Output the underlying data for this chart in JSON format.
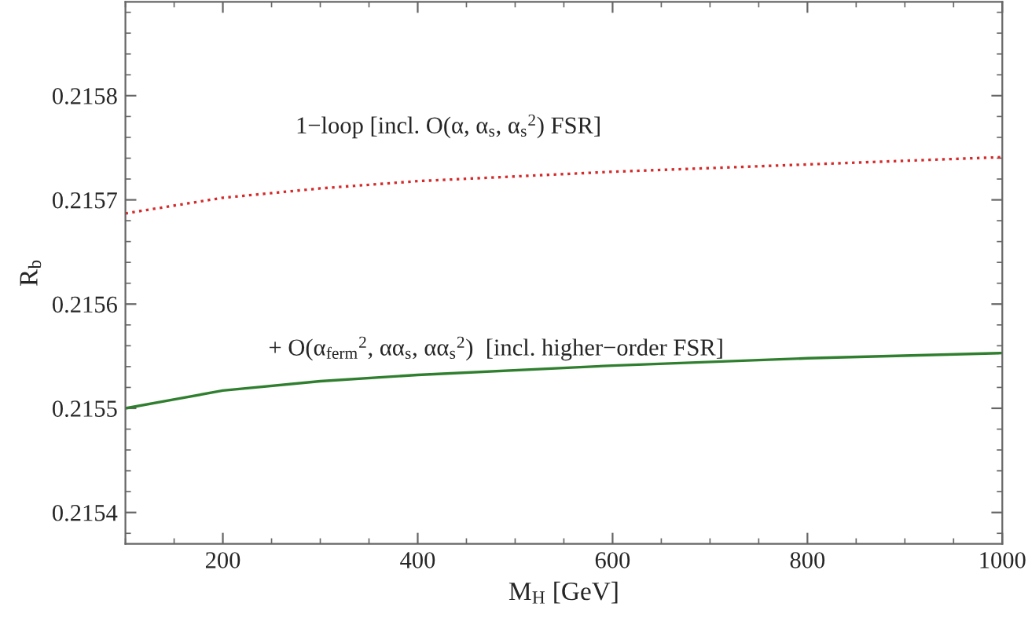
{
  "chart_data": {
    "type": "line",
    "xlabel": "M$_{H}$ [GeV]",
    "ylabel": "R$_{b}$",
    "x": [
      100,
      200,
      300,
      400,
      600,
      800,
      1000
    ],
    "series": [
      {
        "color": "#d42a2a",
        "line_style": "dotted",
        "values": [
          0.215687,
          0.215702,
          0.215711,
          0.215718,
          0.215727,
          0.215734,
          0.215741
        ]
      },
      {
        "color": "#2f7f2f",
        "line_style": "solid",
        "values": [
          0.2155,
          0.215517,
          0.215526,
          0.215532,
          0.215541,
          0.215548,
          0.215553
        ]
      }
    ],
    "annotations": [
      "1−loop [incl. O(α, α$_{s}$, α$_{s}$$^{2}$) FSR]",
      "+ O(α$_{ferm}$$^{2}$, αα$_{s}$, αα$_{s}$$^{2}$)  [incl. higher−order FSR]"
    ],
    "xlim": [
      100,
      1000
    ],
    "xticks": [
      200,
      400,
      600,
      800,
      1000
    ],
    "ylim": [
      0.21537,
      0.21589
    ],
    "yticks": [
      0.2154,
      0.2155,
      0.2156,
      0.2157,
      0.2158
    ],
    "grid": false,
    "legend": false
  }
}
